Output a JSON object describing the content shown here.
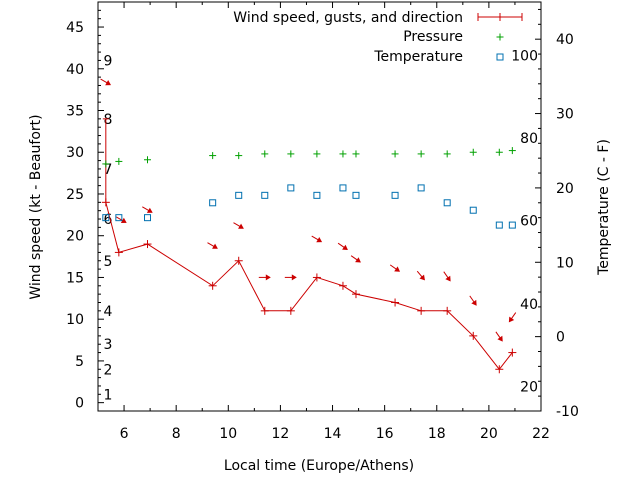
{
  "chart_data": {
    "type": "line",
    "xlabel": "Local time (Europe/Athens)",
    "ylabel": "Wind speed (kt - Beaufort)",
    "y2label": "Temperature (C - F)",
    "xlim": [
      5,
      22
    ],
    "ylim": [
      -1,
      48
    ],
    "y2lim": [
      -10,
      45
    ],
    "grid": false,
    "legend_position": "top-right",
    "x_ticks": [
      "6",
      "8",
      "10",
      "12",
      "14",
      "16",
      "18",
      "20",
      "22"
    ],
    "y_ticks": [
      "0",
      "5",
      "10",
      "15",
      "20",
      "25",
      "30",
      "35",
      "40",
      "45"
    ],
    "y2_ticks": [
      "-10",
      "0",
      "10",
      "20",
      "30",
      "40"
    ],
    "beaufort_labels": [
      {
        "label": "1",
        "y": 1
      },
      {
        "label": "2",
        "y": 4
      },
      {
        "label": "3",
        "y": 7
      },
      {
        "label": "4",
        "y": 11
      },
      {
        "label": "5",
        "y": 17
      },
      {
        "label": "6",
        "y": 22
      },
      {
        "label": "7",
        "y": 28
      },
      {
        "label": "8",
        "y": 34
      },
      {
        "label": "9",
        "y": 41
      }
    ],
    "fahrenheit_labels": [
      {
        "label": "20",
        "y2": -6.7
      },
      {
        "label": "40",
        "y2": 4.4
      },
      {
        "label": "60",
        "y2": 15.6
      },
      {
        "label": "80",
        "y2": 26.7
      },
      {
        "label": "100",
        "y2": 37.8
      }
    ],
    "series": [
      {
        "name": "Wind speed, gusts, and direction",
        "style": "line",
        "color": "#cc0000",
        "x": [
          5.3,
          5.8,
          6.9,
          9.4,
          10.4,
          11.4,
          12.4,
          13.4,
          14.4,
          14.9,
          16.4,
          17.4,
          18.4,
          19.4,
          20.4,
          20.9
        ],
        "y": [
          24,
          18,
          19,
          14,
          17,
          11,
          11,
          15,
          14,
          13,
          12,
          11,
          11,
          8,
          4,
          6
        ],
        "gusts": [
          {
            "x": 5.3,
            "low": 24,
            "high": 34
          }
        ],
        "direction_arrows": [
          {
            "x": 5.3,
            "y": 38.4,
            "angle": 30
          },
          {
            "x": 5.9,
            "y": 21.9,
            "angle": 30
          },
          {
            "x": 6.9,
            "y": 23.1,
            "angle": 30
          },
          {
            "x": 9.4,
            "y": 18.8,
            "angle": 30
          },
          {
            "x": 10.4,
            "y": 21.2,
            "angle": 30
          },
          {
            "x": 11.4,
            "y": 15,
            "angle": 0
          },
          {
            "x": 12.4,
            "y": 15,
            "angle": 0
          },
          {
            "x": 13.4,
            "y": 19.6,
            "angle": 30
          },
          {
            "x": 14.4,
            "y": 18.7,
            "angle": 35
          },
          {
            "x": 14.9,
            "y": 17.2,
            "angle": 35
          },
          {
            "x": 16.4,
            "y": 16.1,
            "angle": 35
          },
          {
            "x": 17.4,
            "y": 15.2,
            "angle": 50
          },
          {
            "x": 18.4,
            "y": 15.1,
            "angle": 55
          },
          {
            "x": 19.4,
            "y": 12.2,
            "angle": 55
          },
          {
            "x": 20.4,
            "y": 7.9,
            "angle": 55
          },
          {
            "x": 20.9,
            "y": 10.2,
            "angle": 125
          }
        ]
      },
      {
        "name": "Pressure",
        "style": "points",
        "marker": "plus",
        "color": "#00a000",
        "x": [
          5.3,
          5.8,
          6.9,
          9.4,
          10.4,
          11.4,
          12.4,
          13.4,
          14.4,
          14.9,
          16.4,
          17.4,
          18.4,
          19.4,
          20.4,
          20.9
        ],
        "y": [
          28.6,
          28.9,
          29.1,
          29.6,
          29.6,
          29.8,
          29.8,
          29.8,
          29.8,
          29.8,
          29.8,
          29.8,
          29.8,
          30.0,
          30.0,
          30.2
        ]
      },
      {
        "name": "Temperature",
        "style": "points",
        "marker": "square",
        "color": "#0070b0",
        "axis": "y2",
        "x": [
          5.3,
          5.8,
          6.9,
          9.4,
          10.4,
          11.4,
          12.4,
          13.4,
          14.4,
          14.9,
          16.4,
          17.4,
          18.4,
          19.4,
          20.4,
          20.9
        ],
        "y": [
          16,
          16,
          16,
          18,
          19,
          19,
          20,
          19,
          20,
          19,
          19,
          20,
          18,
          17,
          15,
          15
        ]
      }
    ]
  }
}
